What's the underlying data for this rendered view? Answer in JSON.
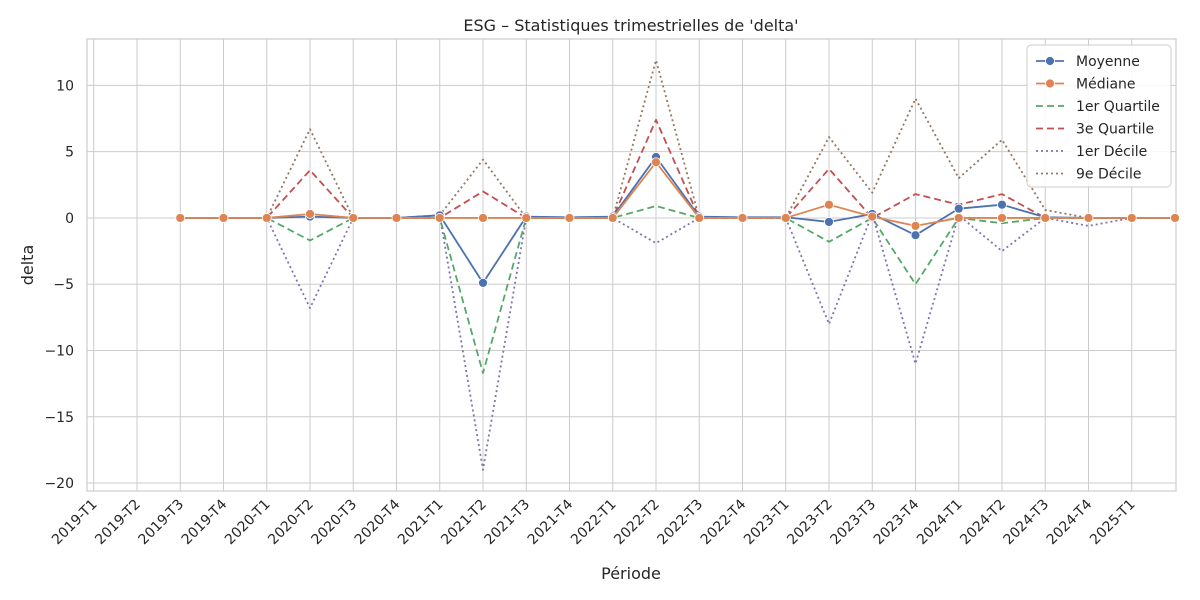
{
  "chart_data": {
    "type": "line",
    "title": "ESG – Statistiques trimestrielles de 'delta'",
    "xlabel": "Période",
    "ylabel": "delta",
    "ylim": [
      -20.6,
      13.5
    ],
    "yticks": [
      -20,
      -15,
      -10,
      -5,
      0,
      5,
      10
    ],
    "ytick_labels": [
      "−20",
      "−15",
      "−10",
      "−5",
      "0",
      "5",
      "10"
    ],
    "grid": true,
    "legend_position": "top-right",
    "categories": [
      "2019-T1",
      "2019-T2",
      "2019-T3",
      "2019-T4",
      "2020-T1",
      "2020-T2",
      "2020-T3",
      "2020-T4",
      "2021-T1",
      "2021-T2",
      "2021-T3",
      "2021-T4",
      "2022-T1",
      "2022-T2",
      "2022-T3",
      "2022-T4",
      "2023-T1",
      "2023-T2",
      "2023-T3",
      "2023-T4",
      "2024-T1",
      "2024-T2",
      "2024-T3",
      "2024-T4",
      "2025-T1"
    ],
    "series": [
      {
        "name": "Moyenne",
        "color": "#4c72b0",
        "style": "solid",
        "marker": true,
        "values": [
          null,
          0,
          0,
          0,
          0.1,
          0,
          0,
          0.2,
          -4.9,
          0.1,
          0.05,
          0.1,
          4.6,
          0.1,
          0.05,
          0.05,
          -0.3,
          0.3,
          -1.3,
          0.7,
          1.0,
          0.05,
          0,
          0,
          0
        ]
      },
      {
        "name": "Médiane",
        "color": "#dd8452",
        "style": "solid",
        "marker": true,
        "values": [
          null,
          0,
          0,
          0,
          0.3,
          0,
          0,
          0,
          0,
          0,
          0,
          0,
          4.2,
          0,
          0,
          0,
          1.0,
          0.1,
          -0.6,
          0,
          0,
          0,
          0,
          0,
          0
        ]
      },
      {
        "name": "1er Quartile",
        "color": "#55a868",
        "style": "dashed",
        "marker": false,
        "values": [
          null,
          0,
          0,
          0,
          -1.7,
          0,
          0,
          0,
          -11.7,
          0,
          0,
          0,
          0.9,
          0,
          0,
          0,
          -1.8,
          0,
          -5.0,
          0,
          -0.4,
          0,
          0,
          0,
          0
        ]
      },
      {
        "name": "3e Quartile",
        "color": "#c44e52",
        "style": "dashed",
        "marker": false,
        "values": [
          null,
          0,
          0,
          0,
          3.6,
          0,
          0,
          0,
          2.0,
          0,
          0,
          0,
          7.4,
          0,
          0,
          0,
          3.7,
          0,
          1.8,
          1.0,
          1.8,
          0,
          0,
          0,
          0
        ]
      },
      {
        "name": "1er Décile",
        "color": "#8172b3",
        "style": "dotted",
        "marker": false,
        "values": [
          null,
          0,
          0,
          0,
          -6.8,
          0,
          0,
          0.2,
          -19.0,
          0,
          0,
          0,
          -1.9,
          0,
          0,
          0,
          -8.0,
          0.3,
          -11.0,
          0.2,
          -2.5,
          0,
          -0.6,
          0,
          0
        ]
      },
      {
        "name": "9e Décile",
        "color": "#937860",
        "style": "dotted",
        "marker": false,
        "values": [
          null,
          0,
          0,
          0,
          6.7,
          0,
          0,
          0.2,
          4.4,
          0,
          0,
          0,
          11.9,
          0,
          0,
          0,
          6.1,
          1.9,
          9.0,
          3.0,
          5.9,
          0.6,
          0,
          0,
          0
        ]
      }
    ]
  }
}
